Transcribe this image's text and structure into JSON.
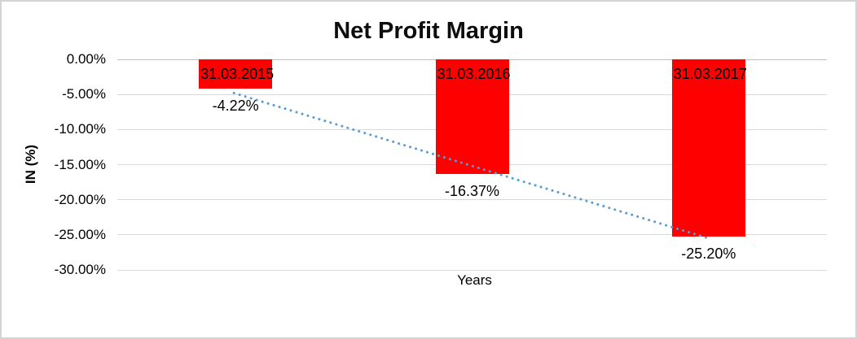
{
  "page": {
    "background": "#ffffff",
    "border_color": "#d4d4d4"
  },
  "chart_data": {
    "type": "bar",
    "title": "Net Profit Margin",
    "xlabel": "Years",
    "ylabel": "IN (%)",
    "categories": [
      "31.03.2015",
      "31.03.2016",
      "31.03.2017"
    ],
    "values": [
      -4.22,
      -16.37,
      -25.2
    ],
    "data_labels": [
      "-4.22%",
      "-16.37%",
      "-25.20%"
    ],
    "bar_color": "#ff0000",
    "label_color": "#000000",
    "ylim": [
      -30,
      0
    ],
    "yticks": [
      0,
      -5,
      -10,
      -15,
      -20,
      -25,
      -30
    ],
    "ytick_labels": [
      "0.00%",
      "-5.00%",
      "-10.00%",
      "-15.00%",
      "-20.00%",
      "-25.00%",
      "-30.00%"
    ],
    "grid": true,
    "gridline_color": "#d9d9d9",
    "legend": "none",
    "trendline": {
      "type": "linear",
      "style": "dotted",
      "color": "#5b9bd5",
      "start_value": -4.8,
      "end_value": -25.5
    }
  }
}
